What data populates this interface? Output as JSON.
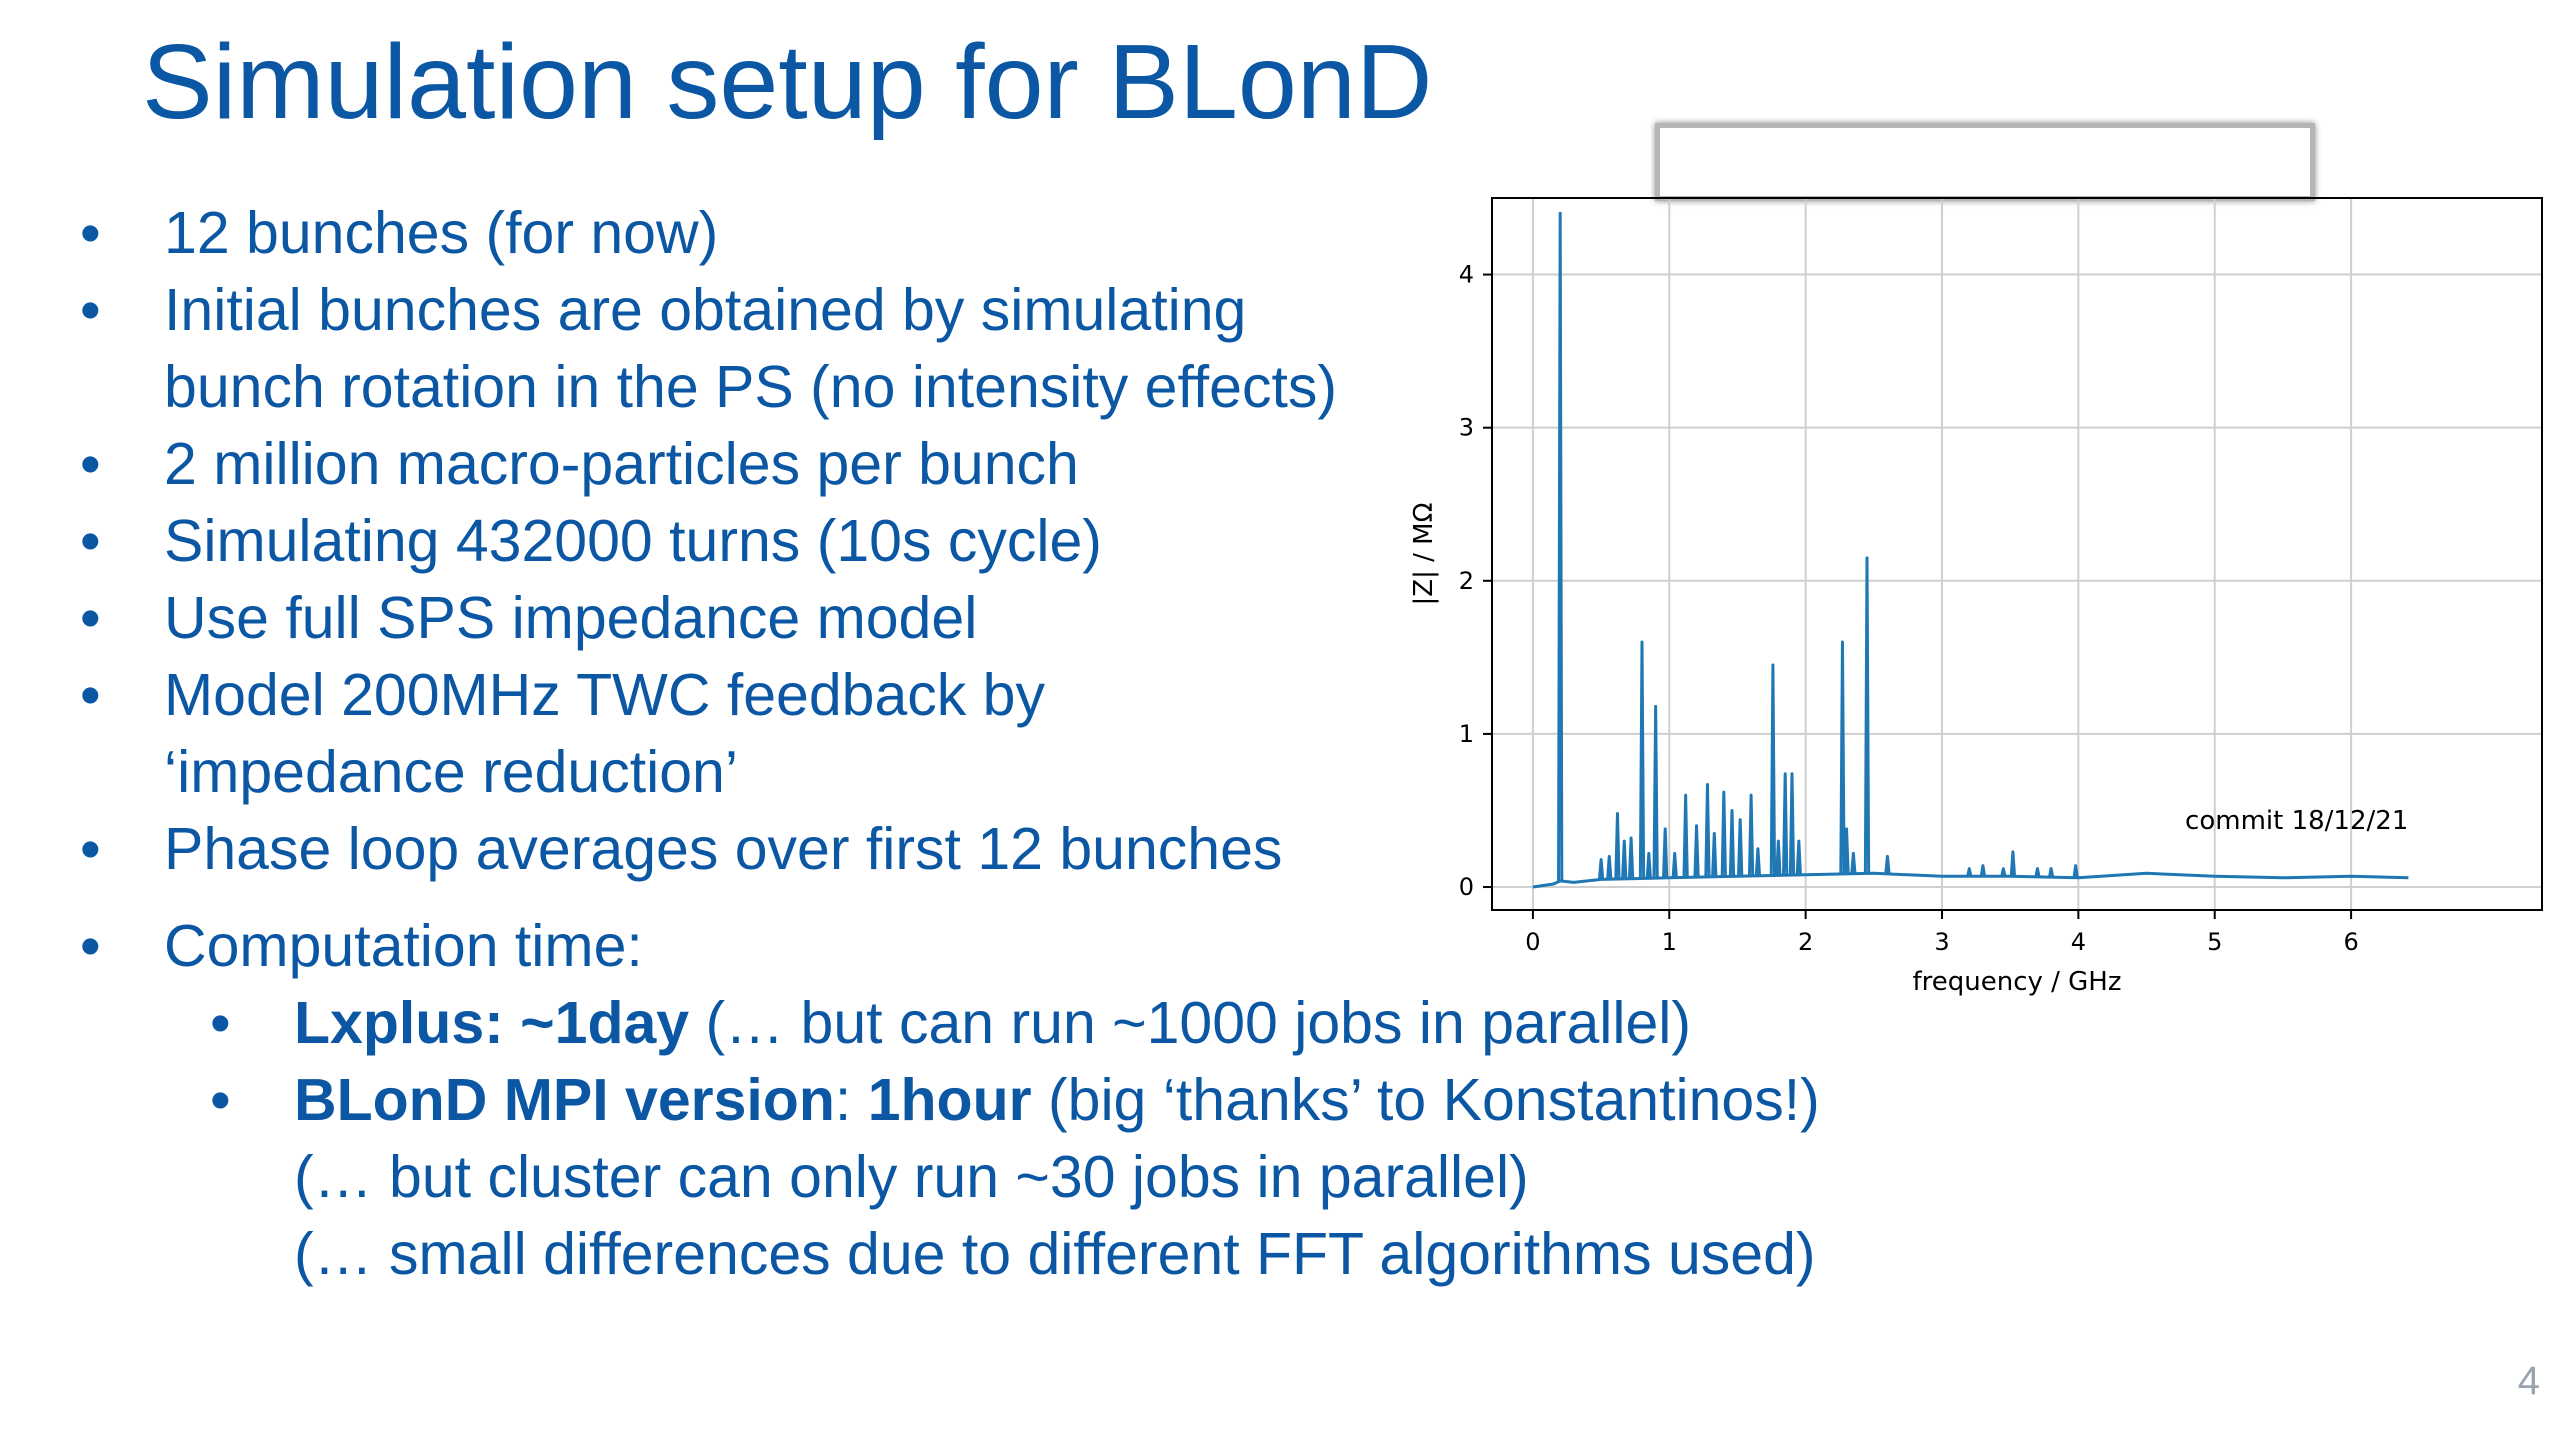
{
  "slide": {
    "title": "Simulation setup for BLonD",
    "page_number": "4"
  },
  "bullets": [
    {
      "bullet": "•",
      "text": "12 bunches (for now)"
    },
    {
      "bullet": "•",
      "text": "Initial bunches are obtained by simulating bunch rotation in the PS (no intensity effects)"
    },
    {
      "bullet": "•",
      "text": "2 million macro-particles per bunch"
    },
    {
      "bullet": "•",
      "text": "Simulating 432000 turns (10s cycle)"
    },
    {
      "bullet": "•",
      "text": "Use full SPS impedance model"
    },
    {
      "bullet": "•",
      "text": "Model 200MHz TWC feedback by ‘impedance reduction’"
    },
    {
      "bullet": "•",
      "text": "Phase loop averages over first 12 bunches"
    }
  ],
  "computation": {
    "bullet": "•",
    "label": "Computation time:",
    "lxplus": {
      "bold": "Lxplus: ~1day",
      "rest": " (… but can run ~1000 jobs in parallel)"
    },
    "mpi": {
      "bold1": "BLonD MPI version",
      "mid": ": ",
      "bold2": "1hour",
      "rest": " (big ‘thanks’ to Konstantinos!)",
      "line2": "(… but cluster can only run ~30 jobs in parallel)",
      "line3": "(… small differences due to different FFT algorithms used)"
    }
  },
  "chart_data": {
    "type": "line",
    "xlabel": "frequency / GHz",
    "ylabel": "|Z| / MΩ",
    "xlim": [
      -0.3,
      7.4
    ],
    "ylim": [
      -0.15,
      4.5
    ],
    "xticks": [
      "0",
      "1",
      "2",
      "3",
      "4",
      "5",
      "6"
    ],
    "yticks": [
      "0",
      "1",
      "2",
      "3",
      "4"
    ],
    "grid": true,
    "annotation": "commit 18/12/21",
    "line_color": "#1f77b4",
    "baseline": [
      [
        0,
        0
      ],
      [
        0.15,
        0.02
      ],
      [
        0.2,
        0.04
      ],
      [
        0.3,
        0.03
      ],
      [
        0.5,
        0.05
      ],
      [
        1.0,
        0.06
      ],
      [
        1.5,
        0.07
      ],
      [
        2.0,
        0.08
      ],
      [
        2.5,
        0.09
      ],
      [
        3.0,
        0.07
      ],
      [
        3.5,
        0.07
      ],
      [
        4.0,
        0.06
      ],
      [
        4.5,
        0.09
      ],
      [
        5.0,
        0.07
      ],
      [
        5.5,
        0.06
      ],
      [
        6.0,
        0.07
      ],
      [
        6.42,
        0.06
      ]
    ],
    "peaks": [
      {
        "x": 0.2,
        "y": 4.4
      },
      {
        "x": 0.5,
        "y": 0.18
      },
      {
        "x": 0.56,
        "y": 0.2
      },
      {
        "x": 0.62,
        "y": 0.48
      },
      {
        "x": 0.67,
        "y": 0.3
      },
      {
        "x": 0.72,
        "y": 0.32
      },
      {
        "x": 0.8,
        "y": 1.6
      },
      {
        "x": 0.85,
        "y": 0.22
      },
      {
        "x": 0.9,
        "y": 1.18
      },
      {
        "x": 0.97,
        "y": 0.38
      },
      {
        "x": 1.04,
        "y": 0.22
      },
      {
        "x": 1.12,
        "y": 0.6
      },
      {
        "x": 1.2,
        "y": 0.4
      },
      {
        "x": 1.28,
        "y": 0.67
      },
      {
        "x": 1.33,
        "y": 0.35
      },
      {
        "x": 1.4,
        "y": 0.62
      },
      {
        "x": 1.46,
        "y": 0.5
      },
      {
        "x": 1.52,
        "y": 0.44
      },
      {
        "x": 1.6,
        "y": 0.6
      },
      {
        "x": 1.65,
        "y": 0.25
      },
      {
        "x": 1.76,
        "y": 1.45
      },
      {
        "x": 1.8,
        "y": 0.3
      },
      {
        "x": 1.85,
        "y": 0.74
      },
      {
        "x": 1.9,
        "y": 0.74
      },
      {
        "x": 1.95,
        "y": 0.3
      },
      {
        "x": 2.27,
        "y": 1.6
      },
      {
        "x": 2.3,
        "y": 0.38
      },
      {
        "x": 2.35,
        "y": 0.22
      },
      {
        "x": 2.45,
        "y": 2.15
      },
      {
        "x": 2.6,
        "y": 0.2
      },
      {
        "x": 3.2,
        "y": 0.12
      },
      {
        "x": 3.3,
        "y": 0.14
      },
      {
        "x": 3.45,
        "y": 0.12
      },
      {
        "x": 3.52,
        "y": 0.23
      },
      {
        "x": 3.7,
        "y": 0.12
      },
      {
        "x": 3.8,
        "y": 0.12
      },
      {
        "x": 3.98,
        "y": 0.14
      }
    ]
  }
}
